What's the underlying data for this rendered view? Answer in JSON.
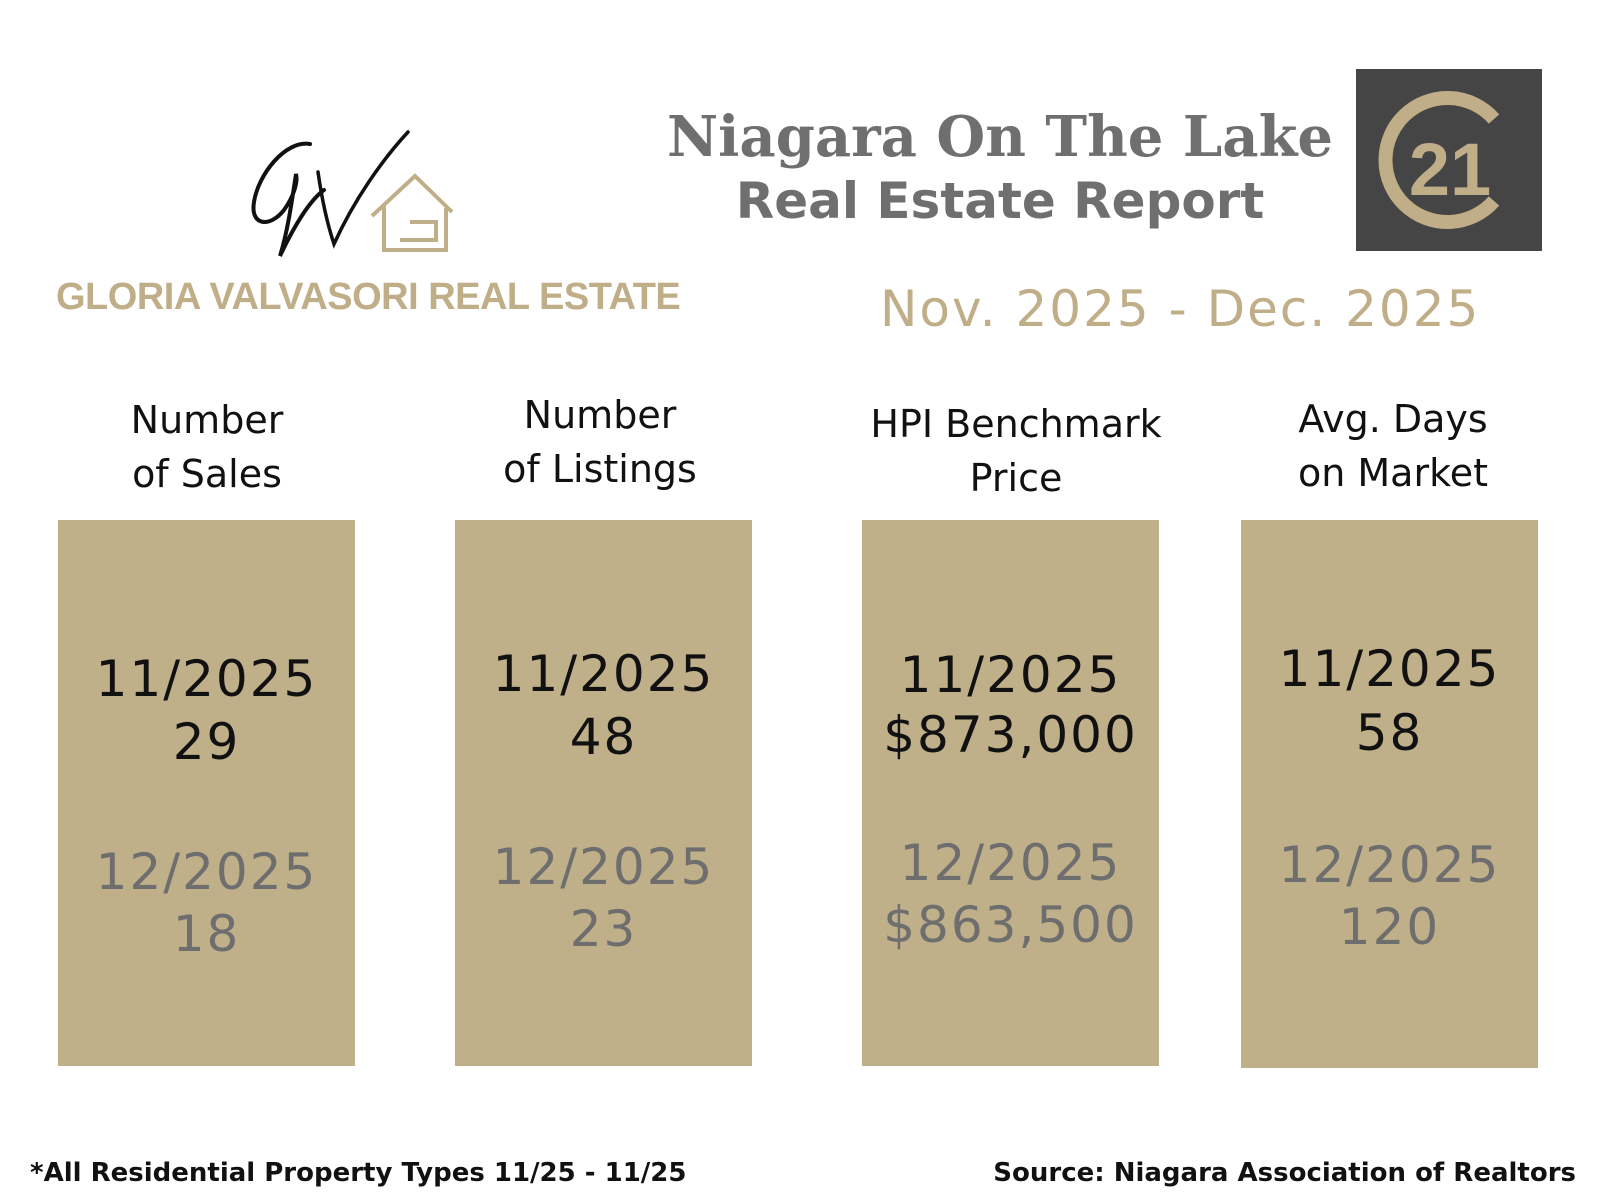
{
  "brand": {
    "monogram": "GV",
    "name": "GLORIA VALVASORI REAL ESTATE"
  },
  "report": {
    "title_line1": "Niagara On The Lake",
    "title_line2": "Real Estate Report",
    "period": "Nov. 2025 - Dec. 2025"
  },
  "partner_logo": {
    "text": "21",
    "icon": "century-21-logo-icon"
  },
  "colors": {
    "card": "#bfb08a",
    "gold": "#c0ae88",
    "title_gray": "#6f6f6f",
    "logo_bg": "#454545"
  },
  "metrics": [
    {
      "heading_line1": "Number",
      "heading_line2": "of Sales",
      "current_period": "11/2025",
      "current_value": "29",
      "previous_period": "12/2025",
      "previous_value": "18"
    },
    {
      "heading_line1": "Number",
      "heading_line2": "of Listings",
      "current_period": "11/2025",
      "current_value": "48",
      "previous_period": "12/2025",
      "previous_value": "23"
    },
    {
      "heading_line1": "HPI Benchmark",
      "heading_line2": "Price",
      "current_period": "11/2025",
      "current_value": "$873,000",
      "previous_period": "12/2025",
      "previous_value": "$863,500"
    },
    {
      "heading_line1": "Avg. Days",
      "heading_line2": "on Market",
      "current_period": "11/2025",
      "current_value": "58",
      "previous_period": "12/2025",
      "previous_value": "120"
    }
  ],
  "footer": {
    "footnote": "*All Residential Property Types 11/25 - 11/25",
    "source": "Source: Niagara Association of Realtors"
  }
}
